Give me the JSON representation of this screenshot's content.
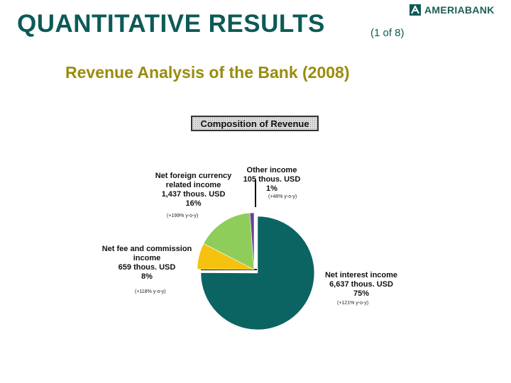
{
  "header": {
    "title": "QUANTITATIVE RESULTS",
    "page_indicator": "(1 of 8)",
    "subtitle": "Revenue Analysis of the Bank (2008)",
    "logo_text": "AMERIABANK"
  },
  "colors": {
    "title": "#0d5a57",
    "subtitle": "#9a8c0d",
    "net_interest": "#0b6462",
    "fee_commission": "#f4c20f",
    "foreign_currency": "#8fcd5b",
    "other": "#6b3f9e"
  },
  "chart_data": {
    "type": "pie",
    "title": "Composition of Revenue",
    "unit": "thous. USD",
    "slices": [
      {
        "name": "Net interest income",
        "value": 6637,
        "value_label": "6,637 thous. USD",
        "percent": 75,
        "percent_label": "75%",
        "yoy": "(+121% y-o-y)",
        "color": "#0b6462"
      },
      {
        "name": "Net fee and commission income",
        "value": 659,
        "value_label": "659 thous. USD",
        "percent": 8,
        "percent_label": "8%",
        "yoy": "(+118% y-o-y)",
        "color": "#f4c20f"
      },
      {
        "name": "Net foreign currency related income",
        "value": 1437,
        "value_label": "1,437 thous. USD",
        "percent": 16,
        "percent_label": "16%",
        "yoy": "(+199% y-o-y)",
        "color": "#8fcd5b"
      },
      {
        "name": "Other income",
        "value": 105,
        "value_label": "105 thous. USD",
        "percent": 1,
        "percent_label": "1%",
        "yoy": "(+48% y-o-y)",
        "color": "#6b3f9e"
      }
    ]
  },
  "labels": {
    "net_interest": {
      "l1": "Net interest income",
      "l2": "6,637 thous. USD",
      "l3": "75%",
      "yoy": "(+121% y-o-y)"
    },
    "fee": {
      "l1": "Net fee and commission",
      "l2": "income",
      "l3": "659 thous. USD",
      "l4": "8%",
      "yoy": "(+118% y-o-y)"
    },
    "fx": {
      "l1": "Net foreign currency",
      "l2": "related income",
      "l3": "1,437 thous. USD",
      "l4": "16%",
      "yoy": "(+199% y-o-y)"
    },
    "other": {
      "l1": "Other income",
      "l2": "105 thous. USD",
      "l3": "1%",
      "yoy": "(+48% y-o-y)"
    }
  }
}
